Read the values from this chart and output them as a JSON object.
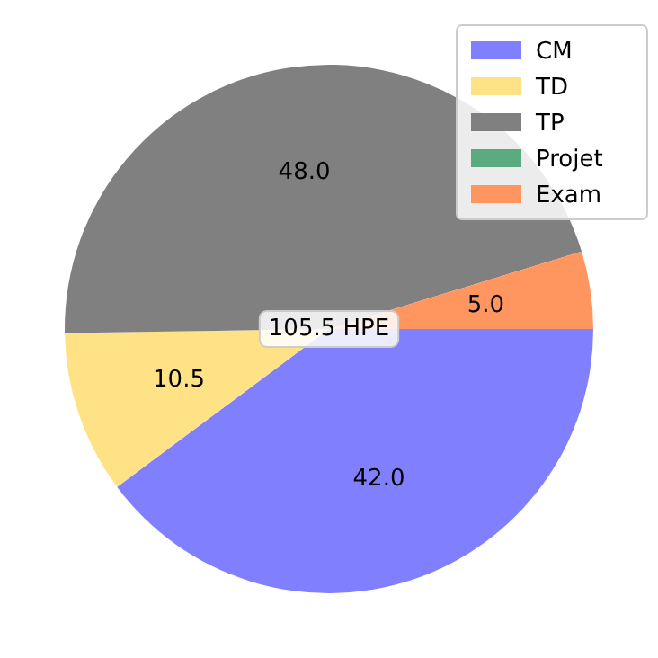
{
  "chart_data": {
    "type": "pie",
    "categories": [
      "CM",
      "TD",
      "TP",
      "Projet",
      "Exam"
    ],
    "values": [
      42,
      10.5,
      48,
      0,
      5
    ],
    "colors": [
      "#8080ff",
      "#ffe285",
      "#808080",
      "#5aab7f",
      "#ff9660"
    ],
    "value_labels": [
      "42.0",
      "10.5",
      "48.0",
      null,
      "5.0"
    ],
    "annotations": [
      "105.5 HPE"
    ],
    "legend": "top right"
  }
}
